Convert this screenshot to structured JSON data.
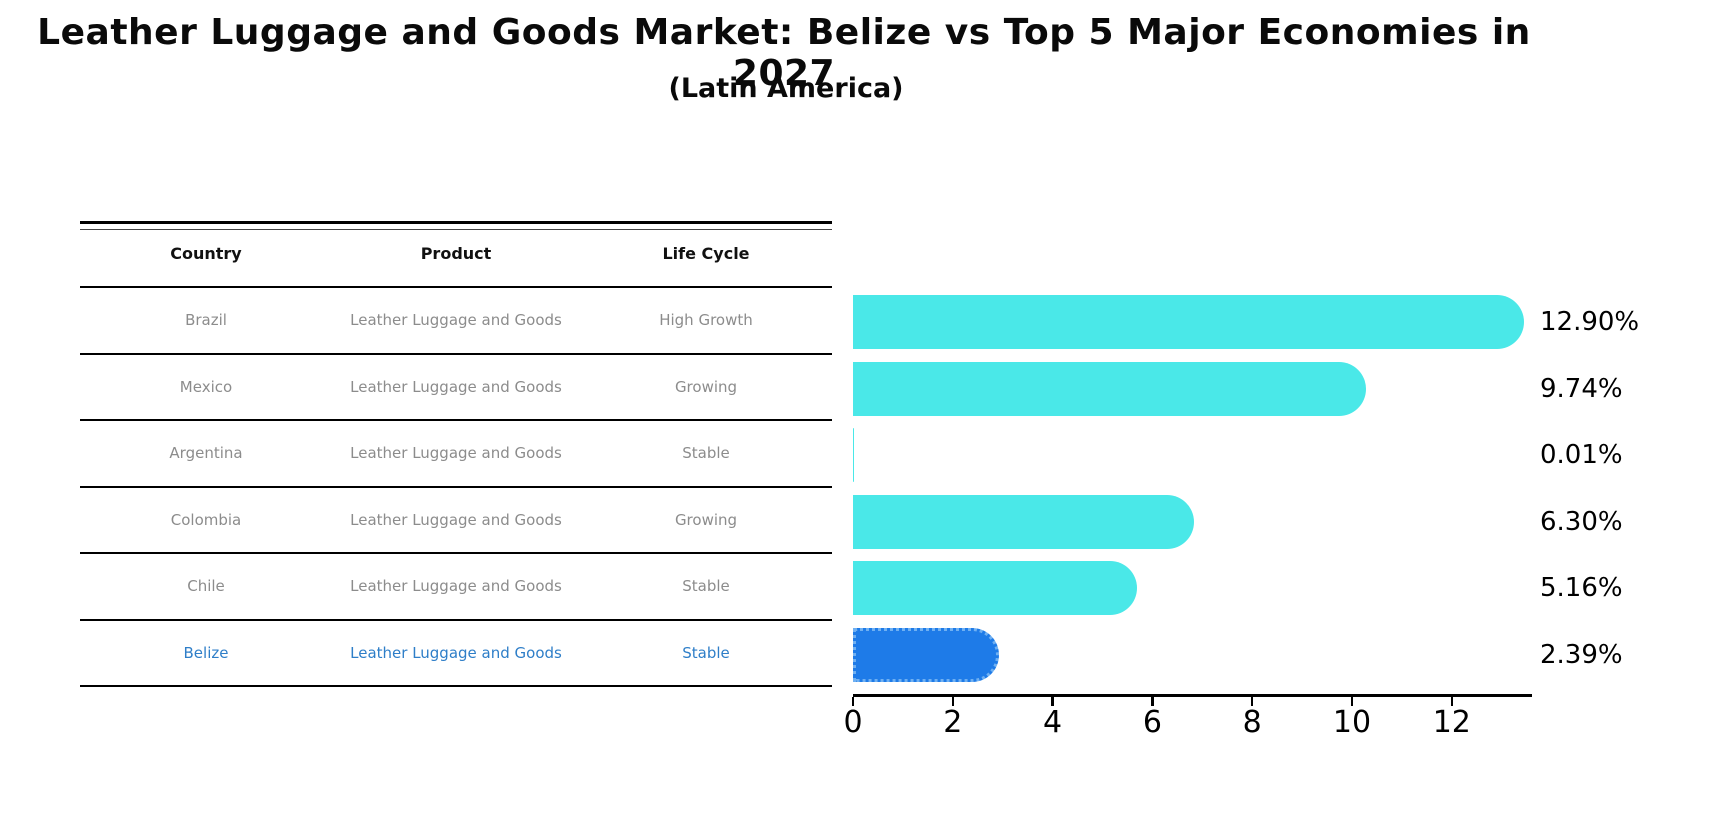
{
  "title": "Leather Luggage and Goods Market: Belize vs Top 5 Major Economies in 2027",
  "subtitle": "(Latin America)",
  "table": {
    "headers": [
      "Country",
      "Product",
      "Life Cycle"
    ],
    "rows": [
      {
        "country": "Brazil",
        "product": "Leather Luggage and Goods",
        "life_cycle": "High Growth",
        "highlight": false
      },
      {
        "country": "Mexico",
        "product": "Leather Luggage and Goods",
        "life_cycle": "Growing",
        "highlight": false
      },
      {
        "country": "Argentina",
        "product": "Leather Luggage and Goods",
        "life_cycle": "Stable",
        "highlight": false
      },
      {
        "country": "Colombia",
        "product": "Leather Luggage and Goods",
        "life_cycle": "Growing",
        "highlight": false
      },
      {
        "country": "Chile",
        "product": "Leather Luggage and Goods",
        "life_cycle": "Stable",
        "highlight": false
      },
      {
        "country": "Belize",
        "product": "Leather Luggage and Goods",
        "life_cycle": "Stable",
        "highlight": true
      }
    ]
  },
  "chart_data": {
    "type": "bar",
    "orientation": "horizontal",
    "title": "Leather Luggage and Goods Market: Belize vs Top 5 Major Economies in 2027 (Latin America)",
    "categories": [
      "Brazil",
      "Mexico",
      "Argentina",
      "Colombia",
      "Chile",
      "Belize"
    ],
    "values": [
      12.9,
      9.74,
      0.01,
      6.3,
      5.16,
      2.39
    ],
    "value_labels": [
      "12.90%",
      "9.74%",
      "0.01%",
      "6.30%",
      "5.16%",
      "2.39%"
    ],
    "xlabel": "",
    "ylabel": "",
    "xlim": [
      0,
      13.6
    ],
    "xticks": [
      0,
      2,
      4,
      6,
      8,
      10,
      12
    ],
    "grid": false,
    "legend": "none",
    "bar_color": "#4ae8e8",
    "highlight_color": "#1e7be8",
    "highlight_index": 5
  },
  "colors": {
    "bar_cyan": "#4ae8e8",
    "bar_blue": "#1e7be8",
    "highlight_text_blue": "#2e7ec8",
    "row_text_gray": "#8c8c8c",
    "axis_black": "#000000"
  }
}
